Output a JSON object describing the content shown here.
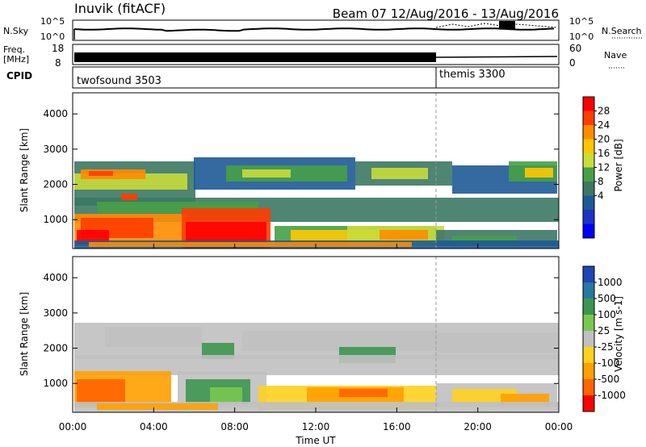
{
  "header": {
    "station": "Inuvik (fitACF)",
    "beam_date": "Beam 07  12/Aug/2016 - 13/Aug/2016"
  },
  "chart_data": [
    {
      "type": "line",
      "panel": "noise",
      "left_label": "N.Sky",
      "right_label": "N.Search",
      "left_ticks": [
        "10^5",
        "10^0"
      ],
      "right_ticks": [
        "10^5",
        "10^0"
      ]
    },
    {
      "type": "line",
      "panel": "frequency",
      "left_label_1": "Freq.",
      "left_label_2": "[MHz]",
      "right_label": "Nave",
      "left_ticks": [
        "18",
        "8"
      ],
      "right_ticks": [
        "60",
        "0"
      ]
    },
    {
      "type": "bar",
      "panel": "cpid",
      "label": "CPID",
      "segments": [
        {
          "name": "twofsound 3503",
          "start_hour": 0,
          "end_hour": 18
        },
        {
          "name": "themis 3300",
          "start_hour": 18,
          "end_hour": 24
        }
      ]
    },
    {
      "type": "heatmap",
      "panel": "power",
      "ylabel": "Slant Range [km]",
      "yticks": [
        1000,
        2000,
        3000,
        4000
      ],
      "ylim": [
        180,
        4600
      ],
      "colorbar_label": "Power [dB]",
      "colorbar_ticks": [
        "28",
        "24",
        "20",
        "16",
        "12",
        "8",
        "4"
      ],
      "colorbar_colors": [
        "#ff0000",
        "#ff3c00",
        "#ff8c00",
        "#ffc800",
        "#c8dc3c",
        "#46a046",
        "#3c7864",
        "#1e5a96",
        "#1e32c8",
        "#0000ff"
      ]
    },
    {
      "type": "heatmap",
      "panel": "velocity",
      "ylabel": "Slant Range [km]",
      "yticks": [
        1000,
        2000,
        3000,
        4000
      ],
      "ylim": [
        180,
        4600
      ],
      "colorbar_label": "Velocity [m s-1]",
      "colorbar_ticks": [
        "1000",
        "500",
        "100",
        "25",
        "-25",
        "-100",
        "-500",
        "-1000"
      ],
      "colorbar_colors": [
        "#1e46b4",
        "#2878a0",
        "#3c9650",
        "#78c850",
        "#c0c0c0",
        "#ffd21e",
        "#ffa000",
        "#ff6400",
        "#ff0000"
      ]
    }
  ],
  "time_axis": {
    "xlabel": "Time UT",
    "ticks": [
      "00:00",
      "04:00",
      "08:00",
      "12:00",
      "16:00",
      "20:00",
      "00:00"
    ],
    "xlim_hours": [
      0,
      24
    ]
  }
}
